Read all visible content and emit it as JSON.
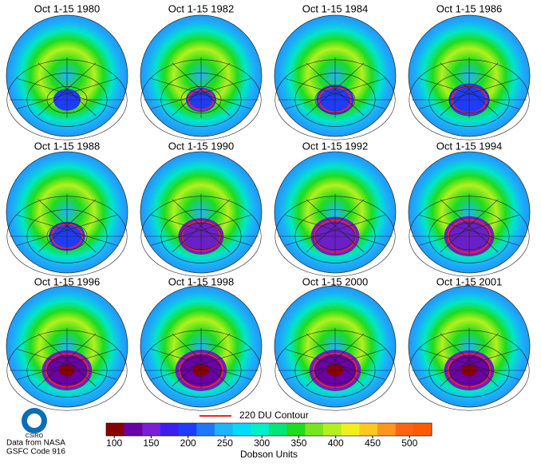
{
  "panels": [
    {
      "title": "Oct 1-15 1980"
    },
    {
      "title": "Oct 1-15 1982"
    },
    {
      "title": "Oct 1-15 1984"
    },
    {
      "title": "Oct 1-15 1986"
    },
    {
      "title": "Oct 1-15 1988"
    },
    {
      "title": "Oct 1-15 1990"
    },
    {
      "title": "Oct 1-15 1992"
    },
    {
      "title": "Oct 1-15 1994"
    },
    {
      "title": "Oct 1-15 1996"
    },
    {
      "title": "Oct 1-15 1998"
    },
    {
      "title": "Oct 1-15 2000"
    },
    {
      "title": "Oct 1-15 2001"
    }
  ],
  "legend": {
    "label": "220 DU Contour",
    "color": "#e8242a"
  },
  "colorbar": {
    "label": "Dobson Units",
    "lim": [
      89,
      530
    ],
    "ticks": [
      100,
      150,
      200,
      250,
      300,
      350,
      400,
      450,
      500
    ],
    "colors": [
      "#8b0000",
      "#6a00a8",
      "#7a1fd6",
      "#3c1ef0",
      "#1e3cff",
      "#1e78ff",
      "#1eb4ff",
      "#00dcff",
      "#00f0c8",
      "#00e678",
      "#1edc1e",
      "#78e61e",
      "#b4f01e",
      "#f0f01e",
      "#ffc81e",
      "#ff961e",
      "#ff6414",
      "#ff5a00"
    ]
  },
  "logo": "CSIRO",
  "credit": [
    "Data from NASA",
    "GSFC Code 916"
  ]
}
